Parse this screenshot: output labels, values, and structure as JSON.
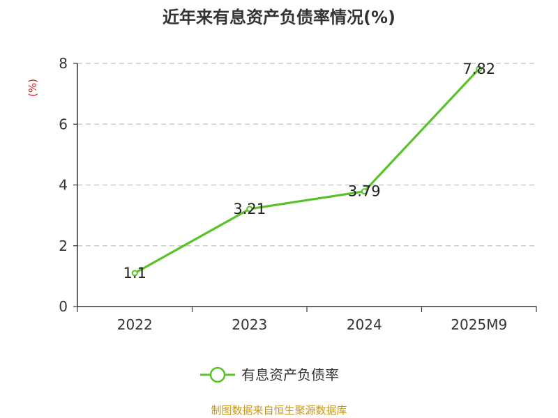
{
  "chart_data": {
    "type": "line",
    "title": "近年来有息资产负债率情况(%)",
    "ylabel": "(%)",
    "xlabel": "",
    "categories": [
      "2022",
      "2023",
      "2024",
      "2025M9"
    ],
    "series": [
      {
        "name": "有息资产负债率",
        "values": [
          1.1,
          3.21,
          3.79,
          7.82
        ],
        "labels": [
          "1.1",
          "3.21",
          "3.79",
          "7.82"
        ]
      }
    ],
    "ylim": [
      0,
      8
    ],
    "yticks": [
      0,
      2,
      4,
      6,
      8
    ],
    "grid": true,
    "legend_position": "bottom"
  },
  "colors": {
    "line": "#5ac229",
    "ylabel": "#e02020",
    "source": "#c8961e",
    "grid": "#cccccc",
    "axis": "#333333"
  },
  "footer": {
    "source": "制图数据来自恒生聚源数据库"
  }
}
